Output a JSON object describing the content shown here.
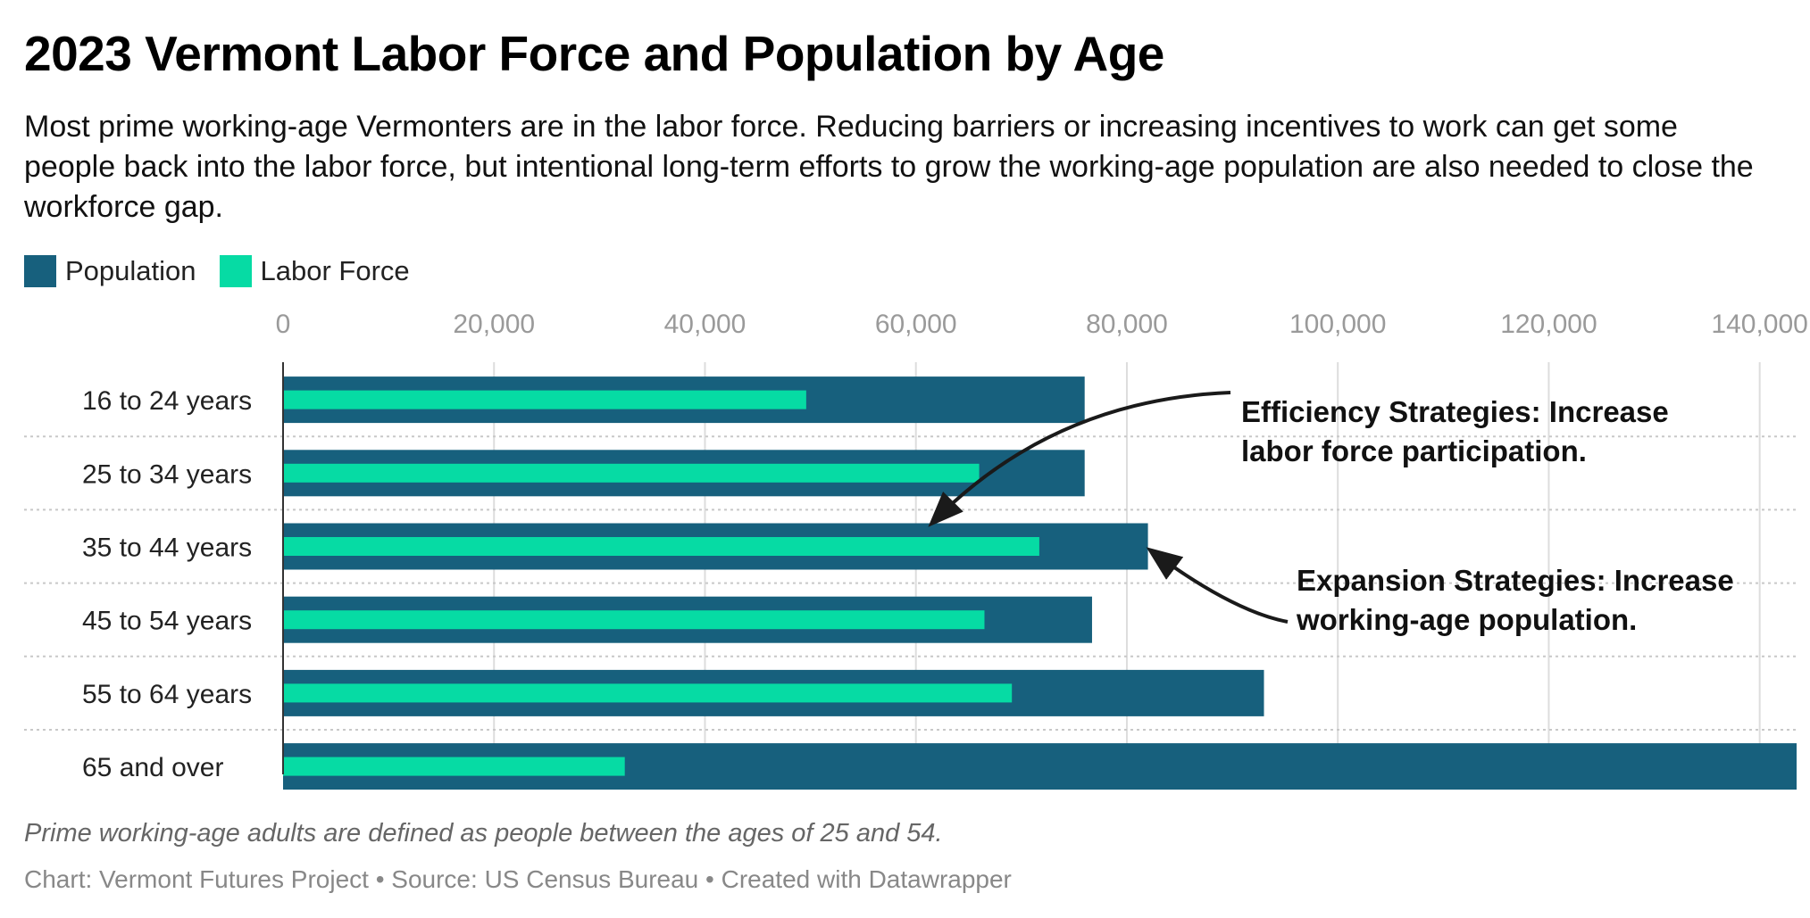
{
  "title": "2023 Vermont Labor Force and Population by Age",
  "subtitle": "Most prime working-age Vermonters are in the labor force. Reducing barriers or increasing incentives to work can get some people back into the labor force, but intentional long-term efforts to grow the working-age population are also needed to close the workforce gap.",
  "legend": [
    {
      "label": "Population",
      "color": "#17607d"
    },
    {
      "label": "Labor Force",
      "color": "#06dba4"
    }
  ],
  "chart_data": {
    "type": "bar",
    "orientation": "horizontal",
    "categories": [
      "16 to 24 years",
      "25 to 34 years",
      "35 to 44 years",
      "45 to 54 years",
      "55 to 64 years",
      "65 and over"
    ],
    "series": [
      {
        "name": "Population",
        "color": "#17607d",
        "values": [
          76000,
          76000,
          82000,
          76700,
          93000,
          143500
        ]
      },
      {
        "name": "Labor Force",
        "color": "#06dba4",
        "values": [
          49600,
          66000,
          71700,
          66500,
          69100,
          32400
        ]
      }
    ],
    "xlim": [
      0,
      143500
    ],
    "xticks": [
      {
        "value": 0,
        "label": "0"
      },
      {
        "value": 20000,
        "label": "20,000"
      },
      {
        "value": 40000,
        "label": "40,000"
      },
      {
        "value": 60000,
        "label": "60,000"
      },
      {
        "value": 80000,
        "label": "80,000"
      },
      {
        "value": 100000,
        "label": "100,000"
      },
      {
        "value": 120000,
        "label": "120,000"
      },
      {
        "value": 140000,
        "label": "140,000"
      }
    ],
    "grid": true,
    "annotations": [
      {
        "lines": [
          "Efficiency Strategies: Increase",
          "labor force participation."
        ],
        "points_to": "35 to 44 years (Labor Force)"
      },
      {
        "lines": [
          "Expansion Strategies: Increase",
          "working-age population."
        ],
        "points_to": "35 to 44 years (Population)"
      }
    ]
  },
  "note": "Prime working-age adults are defined as people between the ages of 25 and 54.",
  "credit": "Chart: Vermont Futures Project • Source: US Census Bureau • Created with Datawrapper"
}
